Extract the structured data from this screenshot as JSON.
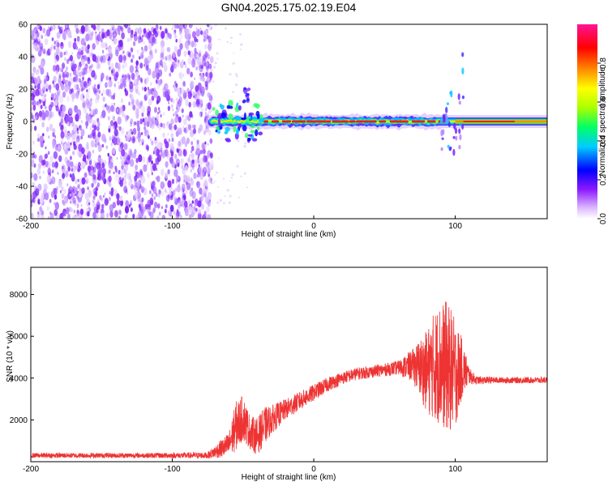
{
  "page": {
    "title": "GN04.2025.175.02.19.E04"
  },
  "chart_data": [
    {
      "type": "heatmap",
      "title": "GN04.2025.175.02.19.E04",
      "xlabel": "Height of straight line (km)",
      "ylabel": "Frequency (Hz)",
      "xlim": [
        -200,
        165
      ],
      "ylim": [
        -60,
        60
      ],
      "x_ticks": [
        -200,
        -100,
        0,
        100
      ],
      "y_ticks": [
        -60,
        -40,
        -20,
        0,
        20,
        40,
        60
      ],
      "colorbar": {
        "label": "Normalized spectral amplitude",
        "range": [
          0,
          1
        ],
        "ticks": [
          0.0,
          0.2,
          0.4,
          0.6,
          0.8
        ],
        "tick_labels": [
          "0.0",
          "0.2",
          "0.4",
          "0.6",
          "0.8"
        ],
        "colormap": [
          "#ffffff",
          "#d9b3ff",
          "#8c1aff",
          "#0000ff",
          "#00ccff",
          "#00ff66",
          "#aaff00",
          "#ffff00",
          "#ff8800",
          "#ff0000",
          "#ff1493"
        ]
      },
      "features": {
        "noise_region_x": [
          -200,
          -72
        ],
        "signal_line_freq_hz": 0,
        "signal_start_x": -72,
        "strong_segment_x": [
          100,
          165
        ],
        "distortion_at_x": 95
      }
    },
    {
      "type": "line",
      "xlabel": "Height of straight line (km)",
      "ylabel": "SNR (10 * v/v)",
      "xlim": [
        -200,
        165
      ],
      "ylim": [
        0,
        9300
      ],
      "x_ticks": [
        -200,
        -100,
        0,
        100
      ],
      "y_ticks": [
        2000,
        4000,
        6000,
        8000
      ],
      "color": "#ee3333",
      "envelope": {
        "x": [
          -200,
          -120,
          -75,
          -60,
          -55,
          -50,
          -45,
          -40,
          -35,
          -30,
          -20,
          -10,
          0,
          10,
          20,
          30,
          40,
          50,
          60,
          70,
          75,
          80,
          85,
          90,
          95,
          100,
          105,
          110,
          115,
          130,
          165
        ],
        "mean": [
          300,
          300,
          300,
          800,
          1700,
          2100,
          1400,
          1200,
          1700,
          2000,
          2500,
          2900,
          3300,
          3700,
          4000,
          4200,
          4300,
          4400,
          4500,
          4600,
          4500,
          4300,
          4600,
          4700,
          4500,
          4200,
          4500,
          4100,
          3900,
          3900,
          3900
        ],
        "amp": [
          120,
          120,
          150,
          600,
          1200,
          1100,
          800,
          900,
          900,
          700,
          500,
          450,
          400,
          350,
          300,
          300,
          300,
          300,
          350,
          800,
          1400,
          2000,
          2600,
          3000,
          3200,
          2600,
          1400,
          400,
          200,
          150,
          150
        ]
      }
    }
  ]
}
